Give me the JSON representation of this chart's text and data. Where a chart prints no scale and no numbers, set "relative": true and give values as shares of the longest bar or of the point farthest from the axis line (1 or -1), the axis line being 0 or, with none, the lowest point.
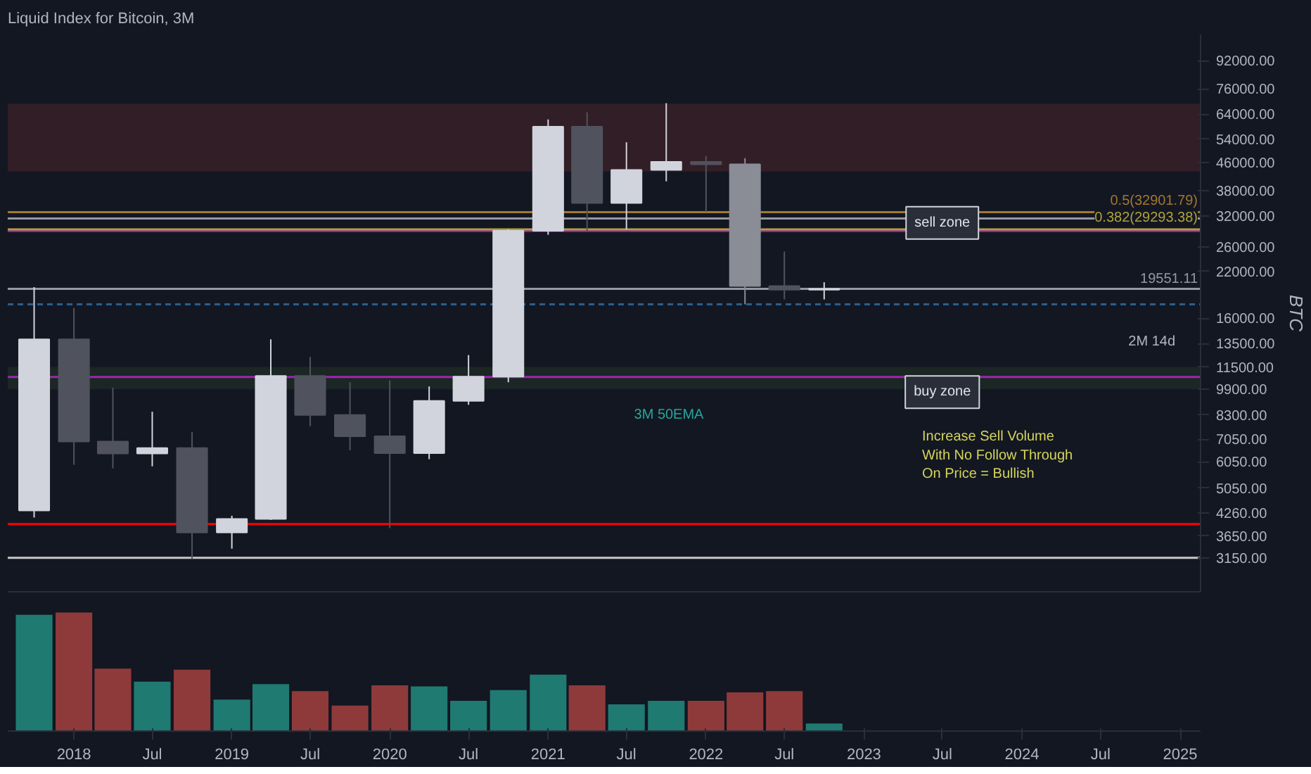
{
  "chart_data": [
    {
      "type": "candlestick",
      "title": "Liquid Index for Bitcoin, 3M",
      "ylabel": "BTC",
      "x": [
        "2017-10-01",
        "2018-01-01",
        "2018-04-01",
        "2018-07-01",
        "2018-10-01",
        "2019-01-01",
        "2019-04-01",
        "2019-07-01",
        "2019-10-01",
        "2020-01-01",
        "2020-04-01",
        "2020-07-01",
        "2020-10-01",
        "2021-01-01",
        "2021-04-01",
        "2021-07-01",
        "2021-10-01",
        "2022-01-01",
        "2022-04-01",
        "2022-07-01",
        "2022-10-01"
      ],
      "ohlc": [
        [
          4340,
          19800,
          4140,
          13880
        ],
        [
          13880,
          17170,
          5920,
          6930
        ],
        [
          6930,
          9990,
          5780,
          6390
        ],
        [
          6390,
          8490,
          5860,
          6630
        ],
        [
          6630,
          7400,
          3130,
          3740
        ],
        [
          3740,
          4190,
          3350,
          4100
        ],
        [
          4100,
          13880,
          4070,
          10820
        ],
        [
          10820,
          12320,
          7700,
          8300
        ],
        [
          8300,
          10370,
          6530,
          7190
        ],
        [
          7190,
          10500,
          3850,
          6410
        ],
        [
          6410,
          10080,
          6150,
          9140
        ],
        [
          9140,
          12470,
          8900,
          10780
        ],
        [
          10780,
          29300,
          10370,
          28990
        ],
        [
          28990,
          61780,
          28230,
          58800
        ],
        [
          58800,
          64870,
          28800,
          35040
        ],
        [
          35040,
          52900,
          29280,
          43830
        ],
        [
          43830,
          69000,
          40600,
          46300
        ],
        [
          46300,
          48200,
          33000,
          45540
        ],
        [
          45540,
          47500,
          17600,
          19930
        ],
        [
          19930,
          25200,
          18200,
          19430
        ],
        [
          19430,
          20450,
          18200,
          19551.11
        ]
      ],
      "colors": [
        "#d1d4dc",
        "#50535e",
        "#50535e",
        "#d1d4dc",
        "#50535e",
        "#d1d4dc",
        "#d1d4dc",
        "#50535e",
        "#50535e",
        "#50535e",
        "#d1d4dc",
        "#d1d4dc",
        "#d1d4dc",
        "#d1d4dc",
        "#50535e",
        "#d1d4dc",
        "#d1d4dc",
        "#50535e",
        "#8a8d96",
        "#50535e",
        "#d1d4dc"
      ],
      "log": true,
      "ylim": [
        2500,
        110000
      ],
      "yticks": [
        {
          "value": 3150,
          "label": "3150.00"
        },
        {
          "value": 3650,
          "label": "3650.00"
        },
        {
          "value": 4260,
          "label": "4260.00"
        },
        {
          "value": 5050,
          "label": "5050.00"
        },
        {
          "value": 6050,
          "label": "6050.00"
        },
        {
          "value": 7050,
          "label": "7050.00"
        },
        {
          "value": 8300,
          "label": "8300.00"
        },
        {
          "value": 9900,
          "label": "9900.00"
        },
        {
          "value": 11500,
          "label": "11500.00"
        },
        {
          "value": 13500,
          "label": "13500.00"
        },
        {
          "value": 16000,
          "label": "16000.00"
        },
        {
          "value": 22000,
          "label": "22000.00"
        },
        {
          "value": 26000,
          "label": "26000.00"
        },
        {
          "value": 32000,
          "label": "32000.00"
        },
        {
          "value": 38000,
          "label": "38000.00"
        },
        {
          "value": 46000,
          "label": "46000.00"
        },
        {
          "value": 54000,
          "label": "54000.00"
        },
        {
          "value": 64000,
          "label": "64000.00"
        },
        {
          "value": 76000,
          "label": "76000.00"
        },
        {
          "value": 92000,
          "label": "92000.00"
        }
      ],
      "xlim": [
        "2017-08-01",
        "2025-02-17"
      ],
      "tick_labels": "y",
      "bands": [
        {
          "axis": "y",
          "from": 43400,
          "to": 68700,
          "color": "#3b2028"
        },
        {
          "axis": "y",
          "from": 9900,
          "to": 11500,
          "color": "#1e2b27"
        }
      ],
      "ref_lines": [
        {
          "axis": "y",
          "value": 28970,
          "color": "#9c27b0"
        },
        {
          "axis": "y",
          "value": 10750,
          "color": "#9c27b0"
        },
        {
          "axis": "y",
          "value": 32901.79,
          "label": "0.5(32901.79)",
          "color": "#a1782e"
        },
        {
          "axis": "y",
          "value": 29293.38,
          "label": "0.382(29293.38)",
          "color": "#b0a13a"
        },
        {
          "axis": "y",
          "value": 31550,
          "color": "#9598a1"
        },
        {
          "axis": "y",
          "value": 19551.11,
          "label": "19551.11",
          "color": "#9598a1"
        },
        {
          "axis": "y",
          "value": 17600,
          "color": "#2a5e8c",
          "line_style": "dashed"
        },
        {
          "axis": "y",
          "value": 3960,
          "color": "#ff0000"
        },
        {
          "axis": "y",
          "value": 3150,
          "color": "#c8c8c8"
        }
      ],
      "annotations": [
        {
          "text": "sell zone",
          "x": "2023-07-01",
          "y": 30600
        },
        {
          "text": "buy zone",
          "x": "2023-07-01",
          "y": 9700
        },
        "3M 50EMA",
        "2M 14d",
        "Increase Sell Volume\nWith No Follow Through\nOn Price = Bullish"
      ]
    },
    {
      "type": "bar",
      "relative": true,
      "x": [
        "2017-10-01",
        "2018-01-01",
        "2018-04-01",
        "2018-07-01",
        "2018-10-01",
        "2019-01-01",
        "2019-04-01",
        "2019-07-01",
        "2019-10-01",
        "2020-01-01",
        "2020-04-01",
        "2020-07-01",
        "2020-10-01",
        "2021-01-01",
        "2021-04-01",
        "2021-07-01",
        "2021-10-01",
        "2022-01-01",
        "2022-04-01",
        "2022-07-01",
        "2022-10-01"
      ],
      "values": [
        0.98,
        1,
        0.53,
        0.42,
        0.52,
        0.27,
        0.4,
        0.34,
        0.22,
        0.39,
        0.38,
        0.26,
        0.35,
        0.48,
        0.39,
        0.23,
        0.26,
        0.26,
        0.33,
        0.34,
        0.07
      ],
      "colors": [
        "#1f7a72",
        "#8f3a3a",
        "#8f3a3a",
        "#1f7a72",
        "#8f3a3a",
        "#1f7a72",
        "#1f7a72",
        "#8f3a3a",
        "#8f3a3a",
        "#8f3a3a",
        "#1f7a72",
        "#1f7a72",
        "#1f7a72",
        "#1f7a72",
        "#8f3a3a",
        "#1f7a72",
        "#1f7a72",
        "#8f3a3a",
        "#8f3a3a",
        "#8f3a3a",
        "#1f7a72"
      ],
      "xlim": [
        "2017-08-01",
        "2025-02-17"
      ],
      "xticks": [
        {
          "value": "2018-01-01",
          "label": "2018"
        },
        {
          "value": "2018-07-01",
          "label": "Jul"
        },
        {
          "value": "2019-01-01",
          "label": "2019"
        },
        {
          "value": "2019-07-01",
          "label": "Jul"
        },
        {
          "value": "2020-01-01",
          "label": "2020"
        },
        {
          "value": "2020-07-01",
          "label": "Jul"
        },
        {
          "value": "2021-01-01",
          "label": "2021"
        },
        {
          "value": "2021-07-01",
          "label": "Jul"
        },
        {
          "value": "2022-01-01",
          "label": "2022"
        },
        {
          "value": "2022-07-01",
          "label": "Jul"
        },
        {
          "value": "2023-01-01",
          "label": "2023"
        },
        {
          "value": "2023-07-01",
          "label": "Jul"
        },
        {
          "value": "2024-01-01",
          "label": "2024"
        },
        {
          "value": "2024-07-01",
          "label": "Jul"
        },
        {
          "value": "2025-01-01",
          "label": "2025"
        }
      ],
      "tick_labels": "x"
    }
  ]
}
